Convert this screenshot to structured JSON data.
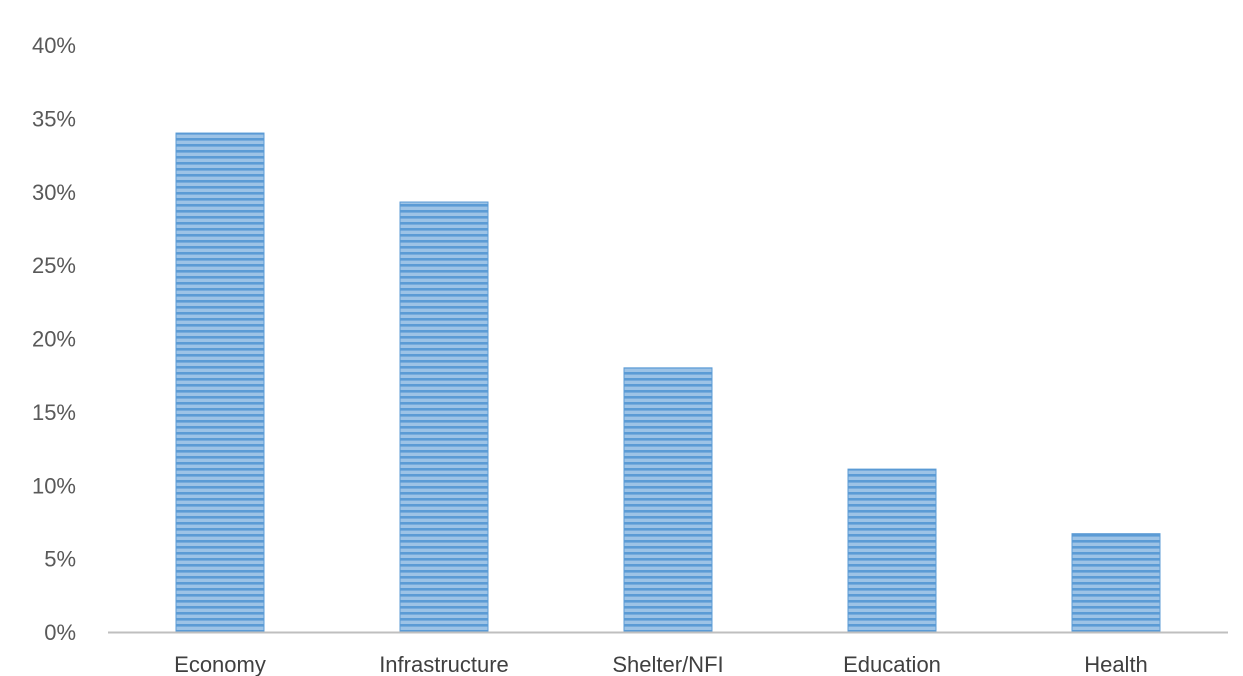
{
  "chart_data": {
    "type": "bar",
    "title": "",
    "xlabel": "",
    "ylabel": "",
    "categories": [
      "Economy",
      "Infrastructure",
      "Shelter/NFI",
      "Education",
      "Health"
    ],
    "values": [
      34,
      29.3,
      18,
      11.1,
      6.7
    ],
    "value_unit": "%",
    "ylim": [
      0,
      40
    ],
    "yticks": [
      "0%",
      "5%",
      "10%",
      "15%",
      "20%",
      "25%",
      "30%",
      "35%",
      "40%"
    ],
    "ytick_values": [
      0,
      5,
      10,
      15,
      20,
      25,
      30,
      35,
      40
    ],
    "grid": false,
    "legend": "none",
    "colors": {
      "bar_fill": "#9dc3e6",
      "bar_stripe": "#5b9bd5",
      "axis_line": "#bfbfbf"
    }
  }
}
